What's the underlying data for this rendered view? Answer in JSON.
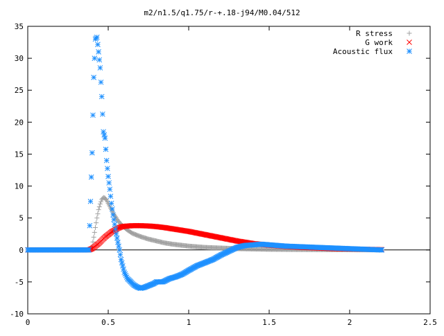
{
  "chart_data": {
    "type": "scatter",
    "title": "m2/n1.5/q1.75/r-+.18-j94/M0.04/512",
    "xlabel": "",
    "ylabel": "",
    "xlim": [
      0,
      2.5
    ],
    "ylim": [
      -10,
      35
    ],
    "xticks": [
      "0",
      "0.5",
      "1",
      "1.5",
      "2",
      "2.5"
    ],
    "yticks": [
      "-10",
      "-5",
      "0",
      "5",
      "10",
      "15",
      "20",
      "25",
      "30",
      "35"
    ],
    "grid": false,
    "legend_position": "top-right",
    "series": [
      {
        "name": "R stress",
        "marker": "plus",
        "color": "#a0a0a0",
        "x": [
          0.0,
          0.1,
          0.2,
          0.3,
          0.38,
          0.4,
          0.41,
          0.42,
          0.43,
          0.44,
          0.45,
          0.46,
          0.47,
          0.48,
          0.49,
          0.5,
          0.51,
          0.52,
          0.53,
          0.54,
          0.55,
          0.56,
          0.57,
          0.58,
          0.6,
          0.62,
          0.65,
          0.7,
          0.75,
          0.8,
          0.85,
          0.9,
          1.0,
          1.1,
          1.2,
          1.3,
          1.4,
          1.5,
          1.6,
          1.8,
          2.0,
          2.2
        ],
        "y": [
          0,
          0,
          0,
          0,
          0,
          0.5,
          2.0,
          3.5,
          5.0,
          6.3,
          7.2,
          7.9,
          8.2,
          8.1,
          7.8,
          7.3,
          6.8,
          6.3,
          5.8,
          5.4,
          5.0,
          4.6,
          4.3,
          4.0,
          3.5,
          3.1,
          2.6,
          2.1,
          1.7,
          1.4,
          1.1,
          0.9,
          0.6,
          0.4,
          0.3,
          0.2,
          0.15,
          0.1,
          0.08,
          0.05,
          0.03,
          0.01
        ]
      },
      {
        "name": "G work",
        "marker": "cross",
        "color": "#ff0000",
        "x": [
          0.0,
          0.1,
          0.2,
          0.3,
          0.38,
          0.4,
          0.42,
          0.44,
          0.46,
          0.48,
          0.5,
          0.52,
          0.54,
          0.56,
          0.58,
          0.6,
          0.65,
          0.7,
          0.75,
          0.8,
          0.85,
          0.9,
          0.95,
          1.0,
          1.05,
          1.1,
          1.15,
          1.2,
          1.25,
          1.3,
          1.35,
          1.4,
          1.5,
          1.6,
          1.7,
          1.8,
          1.9,
          2.0,
          2.1,
          2.2
        ],
        "y": [
          0,
          0,
          0,
          0,
          0,
          0.2,
          0.6,
          1.0,
          1.5,
          2.0,
          2.4,
          2.8,
          3.1,
          3.4,
          3.6,
          3.7,
          3.8,
          3.8,
          3.75,
          3.65,
          3.5,
          3.3,
          3.1,
          2.9,
          2.65,
          2.4,
          2.15,
          1.9,
          1.65,
          1.4,
          1.2,
          1.0,
          0.75,
          0.55,
          0.4,
          0.3,
          0.2,
          0.15,
          0.1,
          0.05
        ]
      },
      {
        "name": "Acoustic flux",
        "marker": "star",
        "color": "#1e90ff",
        "x": [
          0.0,
          0.1,
          0.2,
          0.3,
          0.38,
          0.4,
          0.41,
          0.42,
          0.43,
          0.44,
          0.45,
          0.46,
          0.47,
          0.48,
          0.49,
          0.5,
          0.51,
          0.52,
          0.53,
          0.54,
          0.55,
          0.56,
          0.57,
          0.58,
          0.59,
          0.6,
          0.62,
          0.64,
          0.66,
          0.68,
          0.7,
          0.72,
          0.74,
          0.76,
          0.78,
          0.8,
          0.84,
          0.88,
          0.92,
          0.96,
          1.0,
          1.05,
          1.1,
          1.15,
          1.2,
          1.25,
          1.3,
          1.35,
          1.4,
          1.45,
          1.5,
          1.6,
          1.7,
          1.8,
          1.9,
          2.0,
          2.1,
          2.2
        ],
        "y": [
          0,
          0,
          0,
          0,
          0,
          15.2,
          27.0,
          33.0,
          33.3,
          31.0,
          28.5,
          24.0,
          18.5,
          17.5,
          14.0,
          11.5,
          9.5,
          7.3,
          5.5,
          4.0,
          2.5,
          1.2,
          0.0,
          -1.5,
          -2.5,
          -3.5,
          -4.5,
          -5.0,
          -5.5,
          -5.8,
          -6.0,
          -5.9,
          -5.7,
          -5.5,
          -5.3,
          -5.0,
          -5.0,
          -4.5,
          -4.2,
          -3.8,
          -3.2,
          -2.5,
          -2.0,
          -1.5,
          -0.8,
          -0.2,
          0.4,
          0.7,
          0.8,
          0.9,
          0.8,
          0.6,
          0.5,
          0.4,
          0.3,
          0.2,
          0.1,
          0.0
        ]
      }
    ]
  }
}
